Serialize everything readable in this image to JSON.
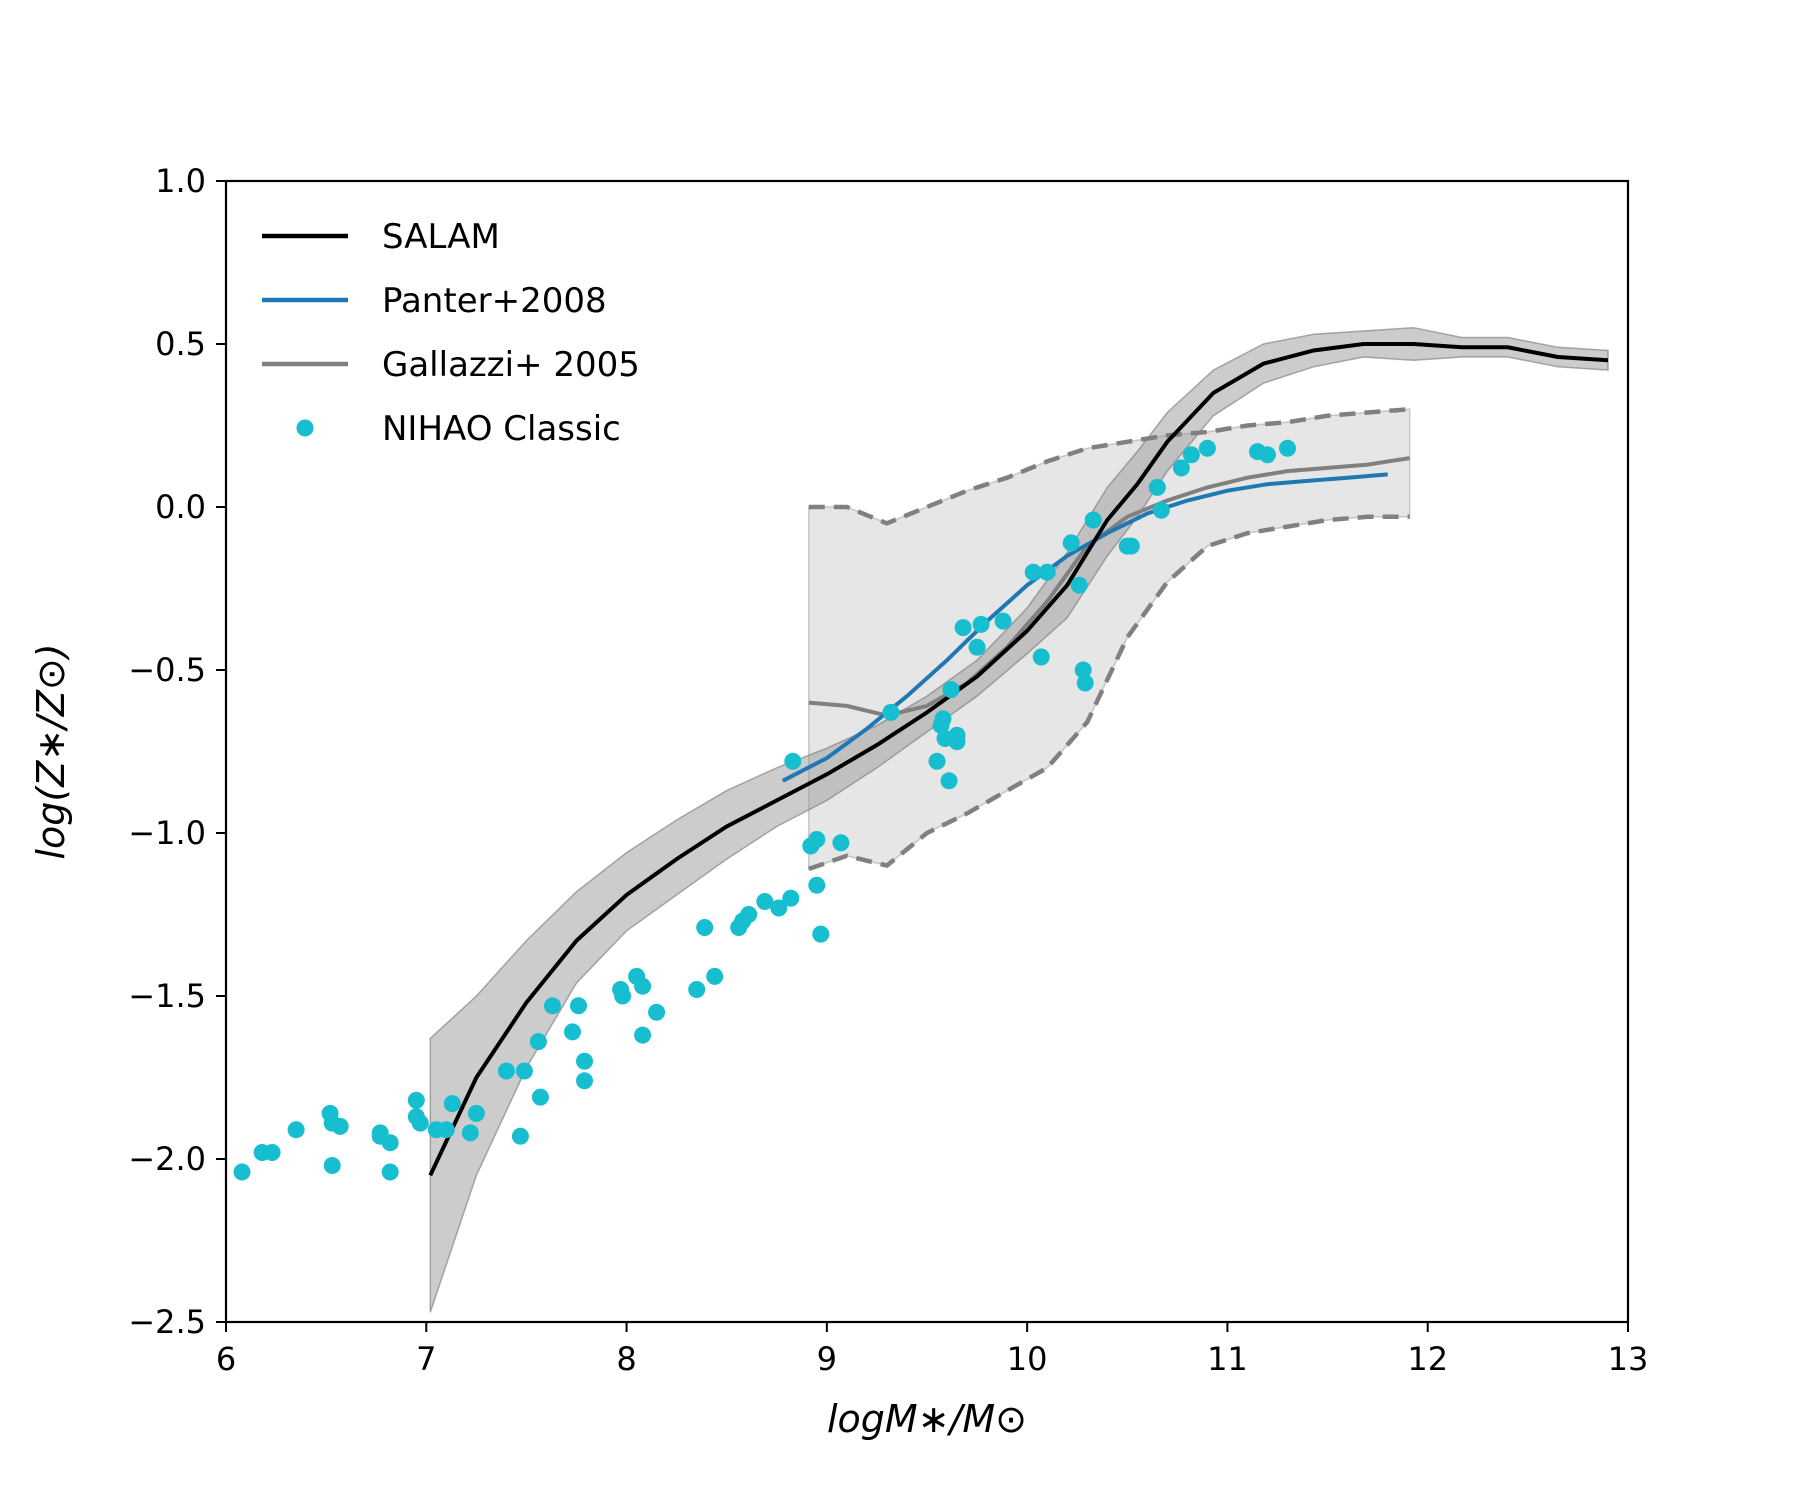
{
  "chart_data": {
    "type": "line",
    "xlabel": "logM∗/M⊙",
    "ylabel": "log(Z∗/Z⊙)",
    "xlim": [
      6,
      13
    ],
    "ylim": [
      -2.5,
      1.0
    ],
    "xticks": [
      6,
      7,
      8,
      9,
      10,
      11,
      12,
      13
    ],
    "yticks": [
      1.0,
      0.5,
      0.0,
      -0.5,
      -1.0,
      -1.5,
      -2.0,
      -2.5
    ],
    "ytick_labels": [
      "1.0",
      "0.5",
      "0.0",
      "−0.5",
      "−1.0",
      "−1.5",
      "−2.0",
      "−2.5"
    ],
    "grid": false,
    "legend_position": "top-left",
    "legend": [
      {
        "label": "SALAM",
        "kind": "line",
        "color": "#000000"
      },
      {
        "label": "Panter+2008",
        "kind": "line",
        "color": "#1f77b4"
      },
      {
        "label": "Gallazzi+ 2005",
        "kind": "line",
        "color": "#808080"
      },
      {
        "label": "NIHAO Classic",
        "kind": "marker",
        "color": "#17becf"
      }
    ],
    "series": [
      {
        "name": "SALAM",
        "color": "#000000",
        "x": [
          7.02,
          7.25,
          7.5,
          7.75,
          8.0,
          8.25,
          8.5,
          8.75,
          9.0,
          9.25,
          9.5,
          9.75,
          10.0,
          10.2,
          10.4,
          10.55,
          10.7,
          10.93,
          11.18,
          11.43,
          11.68,
          11.93,
          12.17,
          12.4,
          12.65,
          12.9
        ],
        "y": [
          -2.05,
          -1.75,
          -1.52,
          -1.33,
          -1.19,
          -1.08,
          -0.98,
          -0.9,
          -0.82,
          -0.73,
          -0.63,
          -0.52,
          -0.38,
          -0.24,
          -0.04,
          0.07,
          0.2,
          0.35,
          0.44,
          0.48,
          0.5,
          0.5,
          0.49,
          0.49,
          0.46,
          0.45
        ],
        "band_upper": [
          -1.63,
          -1.5,
          -1.33,
          -1.18,
          -1.06,
          -0.96,
          -0.87,
          -0.8,
          -0.74,
          -0.67,
          -0.58,
          -0.47,
          -0.31,
          -0.14,
          0.06,
          0.17,
          0.29,
          0.42,
          0.5,
          0.53,
          0.54,
          0.55,
          0.52,
          0.52,
          0.49,
          0.48
        ],
        "band_lower": [
          -2.47,
          -2.05,
          -1.72,
          -1.46,
          -1.3,
          -1.19,
          -1.08,
          -0.98,
          -0.9,
          -0.8,
          -0.69,
          -0.58,
          -0.45,
          -0.34,
          -0.15,
          -0.03,
          0.11,
          0.28,
          0.38,
          0.43,
          0.46,
          0.45,
          0.46,
          0.46,
          0.43,
          0.42
        ]
      },
      {
        "name": "Panter+2008",
        "color": "#1f77b4",
        "x": [
          8.78,
          9.0,
          9.2,
          9.4,
          9.6,
          9.8,
          10.0,
          10.2,
          10.4,
          10.6,
          10.8,
          11.0,
          11.2,
          11.4,
          11.6,
          11.8
        ],
        "y": [
          -0.84,
          -0.77,
          -0.68,
          -0.58,
          -0.47,
          -0.35,
          -0.24,
          -0.15,
          -0.08,
          -0.02,
          0.02,
          0.05,
          0.07,
          0.08,
          0.09,
          0.1
        ]
      },
      {
        "name": "Gallazzi+ 2005",
        "color": "#808080",
        "x": [
          8.91,
          9.1,
          9.3,
          9.5,
          9.7,
          9.9,
          10.1,
          10.3,
          10.5,
          10.7,
          10.9,
          11.1,
          11.3,
          11.5,
          11.7,
          11.91
        ],
        "y": [
          -0.6,
          -0.61,
          -0.64,
          -0.61,
          -0.54,
          -0.43,
          -0.29,
          -0.12,
          -0.03,
          0.02,
          0.06,
          0.09,
          0.11,
          0.12,
          0.13,
          0.15
        ],
        "band_upper": [
          0.0,
          0.0,
          -0.05,
          0.0,
          0.05,
          0.09,
          0.14,
          0.18,
          0.2,
          0.22,
          0.23,
          0.25,
          0.26,
          0.28,
          0.29,
          0.3
        ],
        "band_lower": [
          -1.11,
          -1.07,
          -1.1,
          -1.0,
          -0.94,
          -0.87,
          -0.8,
          -0.66,
          -0.4,
          -0.23,
          -0.12,
          -0.08,
          -0.06,
          -0.04,
          -0.03,
          -0.03
        ]
      },
      {
        "name": "NIHAO Classic",
        "color": "#17becf",
        "points": [
          [
            6.08,
            -2.04
          ],
          [
            6.18,
            -1.98
          ],
          [
            6.23,
            -1.98
          ],
          [
            6.35,
            -1.91
          ],
          [
            6.52,
            -1.86
          ],
          [
            6.53,
            -1.89
          ],
          [
            6.57,
            -1.9
          ],
          [
            6.53,
            -2.02
          ],
          [
            6.77,
            -1.92
          ],
          [
            6.77,
            -1.93
          ],
          [
            6.82,
            -1.95
          ],
          [
            6.82,
            -2.04
          ],
          [
            6.95,
            -1.82
          ],
          [
            6.95,
            -1.87
          ],
          [
            6.97,
            -1.89
          ],
          [
            7.05,
            -1.91
          ],
          [
            7.1,
            -1.91
          ],
          [
            7.13,
            -1.83
          ],
          [
            7.22,
            -1.92
          ],
          [
            7.25,
            -1.86
          ],
          [
            7.4,
            -1.73
          ],
          [
            7.47,
            -1.93
          ],
          [
            7.49,
            -1.73
          ],
          [
            7.56,
            -1.64
          ],
          [
            7.57,
            -1.81
          ],
          [
            7.63,
            -1.53
          ],
          [
            7.73,
            -1.61
          ],
          [
            7.76,
            -1.53
          ],
          [
            7.79,
            -1.7
          ],
          [
            7.79,
            -1.76
          ],
          [
            7.97,
            -1.48
          ],
          [
            7.98,
            -1.5
          ],
          [
            8.05,
            -1.44
          ],
          [
            8.08,
            -1.47
          ],
          [
            8.08,
            -1.62
          ],
          [
            8.15,
            -1.55
          ],
          [
            8.35,
            -1.48
          ],
          [
            8.39,
            -1.29
          ],
          [
            8.44,
            -1.44
          ],
          [
            8.56,
            -1.29
          ],
          [
            8.58,
            -1.27
          ],
          [
            8.61,
            -1.25
          ],
          [
            8.69,
            -1.21
          ],
          [
            8.76,
            -1.23
          ],
          [
            8.82,
            -1.2
          ],
          [
            8.83,
            -0.78
          ],
          [
            8.92,
            -1.04
          ],
          [
            8.95,
            -1.02
          ],
          [
            8.95,
            -1.16
          ],
          [
            8.97,
            -1.31
          ],
          [
            9.07,
            -1.03
          ],
          [
            9.32,
            -0.63
          ],
          [
            9.55,
            -0.78
          ],
          [
            9.57,
            -0.67
          ],
          [
            9.58,
            -0.65
          ],
          [
            9.59,
            -0.71
          ],
          [
            9.62,
            -0.56
          ],
          [
            9.61,
            -0.84
          ],
          [
            9.65,
            -0.7
          ],
          [
            9.65,
            -0.72
          ],
          [
            9.68,
            -0.37
          ],
          [
            9.75,
            -0.43
          ],
          [
            9.77,
            -0.36
          ],
          [
            9.88,
            -0.35
          ],
          [
            10.03,
            -0.2
          ],
          [
            10.07,
            -0.46
          ],
          [
            10.1,
            -0.2
          ],
          [
            10.22,
            -0.11
          ],
          [
            10.26,
            -0.24
          ],
          [
            10.28,
            -0.5
          ],
          [
            10.29,
            -0.54
          ],
          [
            10.33,
            -0.04
          ],
          [
            10.5,
            -0.12
          ],
          [
            10.52,
            -0.12
          ],
          [
            10.65,
            0.06
          ],
          [
            10.67,
            -0.01
          ],
          [
            10.77,
            0.12
          ],
          [
            10.82,
            0.16
          ],
          [
            10.9,
            0.18
          ],
          [
            11.15,
            0.17
          ],
          [
            11.2,
            0.16
          ],
          [
            11.3,
            0.18
          ]
        ]
      }
    ]
  }
}
